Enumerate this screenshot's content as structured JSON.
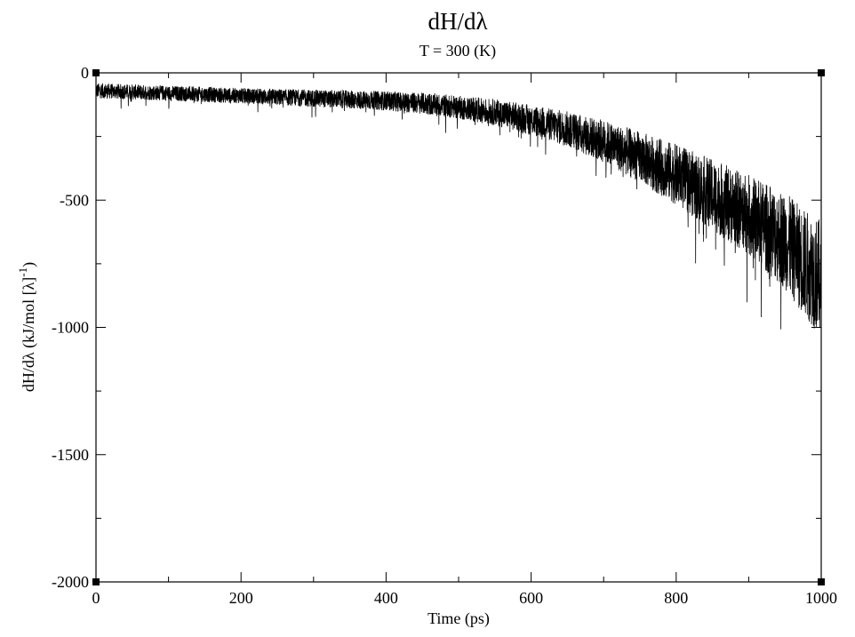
{
  "chart_data": {
    "type": "line",
    "title": "dH/dλ",
    "subtitle": "T = 300 (K)",
    "xlabel": "Time (ps)",
    "ylabel_main": "dH/dλ (kJ/mol [λ]",
    "ylabel_sup": "-1",
    "ylabel_close": ")",
    "xlim": [
      0,
      1000
    ],
    "ylim": [
      -2000,
      0
    ],
    "x_ticks": [
      "0",
      "200",
      "400",
      "600",
      "800",
      "1000"
    ],
    "y_ticks": [
      "0",
      "-500",
      "-1000",
      "-1500",
      "-2000"
    ],
    "line_color": "#000000",
    "series": [
      {
        "x": [
          0,
          50,
          100,
          150,
          200,
          250,
          300,
          350,
          400,
          450,
          500,
          550,
          600,
          650,
          700,
          750,
          800,
          850,
          900,
          925,
          950,
          975,
          1000
        ],
        "mean": [
          -70,
          -75,
          -80,
          -85,
          -90,
          -95,
          -100,
          -105,
          -110,
          -120,
          -135,
          -155,
          -185,
          -220,
          -270,
          -330,
          -400,
          -480,
          -560,
          -610,
          -660,
          -740,
          -810
        ],
        "spread": [
          30,
          30,
          30,
          30,
          30,
          32,
          34,
          36,
          38,
          42,
          46,
          52,
          60,
          70,
          85,
          100,
          120,
          140,
          160,
          175,
          190,
          210,
          230
        ]
      }
    ]
  }
}
